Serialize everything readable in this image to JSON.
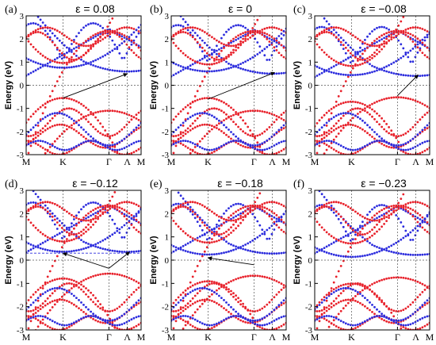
{
  "figure": {
    "y_axis_label": "Energy (eV)",
    "y_ticks": [
      "3",
      "2",
      "1",
      "0",
      "-1",
      "-2",
      "-3"
    ],
    "colors": {
      "red": "#e8202a",
      "blue": "#2b2bdd",
      "arrow": "#000000",
      "axis": "#000000",
      "guide": "#555555"
    }
  },
  "chart_data": [
    {
      "type": "scatter",
      "panel_label": "(a)",
      "title": "ε = 0.08",
      "x_tick_labels": [
        "M",
        "K",
        "Γ",
        "Λ",
        "M"
      ],
      "x": [
        0,
        0.32,
        0.72,
        0.88,
        1
      ],
      "ylim": [
        -3,
        3
      ],
      "grid": false,
      "annotations": {
        "arrow": {
          "from": [
            0.32,
            -0.55
          ],
          "to": [
            0.88,
            0.5
          ]
        },
        "blue_dashed_level": null
      }
    },
    {
      "type": "scatter",
      "panel_label": "(b)",
      "title": "ε = 0",
      "x_tick_labels": [
        "M",
        "K",
        "Γ",
        "Λ",
        "M"
      ],
      "x": [
        0,
        0.32,
        0.72,
        0.88,
        1
      ],
      "ylim": [
        -3,
        3
      ],
      "grid": false,
      "annotations": {
        "arrow": {
          "from": [
            0.32,
            -0.6
          ],
          "to": [
            0.9,
            0.55
          ]
        },
        "blue_dashed_level": null
      }
    },
    {
      "type": "scatter",
      "panel_label": "(c)",
      "title": "ε = −0.08",
      "x_tick_labels": [
        "M",
        "K",
        "Γ",
        "Λ",
        "M"
      ],
      "x": [
        0,
        0.32,
        0.72,
        0.88,
        1
      ],
      "ylim": [
        -3,
        3
      ],
      "grid": false,
      "annotations": {
        "arrow": {
          "from": [
            0.72,
            -0.45
          ],
          "to": [
            0.9,
            0.45
          ]
        },
        "blue_dashed_level": null
      }
    },
    {
      "type": "scatter",
      "panel_label": "(d)",
      "title": "ε = −0.12",
      "x_tick_labels": [
        "M",
        "K",
        "Γ",
        "Λ",
        "M"
      ],
      "x": [
        0,
        0.32,
        0.72,
        0.88,
        1
      ],
      "ylim": [
        -3,
        3
      ],
      "grid": false,
      "annotations": {
        "arrow": {
          "from": [
            0.72,
            -0.35
          ],
          "to": [
            0.9,
            0.35
          ]
        },
        "arrow2": {
          "from": [
            0.72,
            -0.35
          ],
          "to": [
            0.32,
            0.3
          ]
        },
        "blue_dashed_level": 0.3
      }
    },
    {
      "type": "scatter",
      "panel_label": "(e)",
      "title": "ε = −0.18",
      "x_tick_labels": [
        "M",
        "K",
        "Γ",
        "Λ",
        "M"
      ],
      "x": [
        0,
        0.32,
        0.72,
        0.88,
        1
      ],
      "ylim": [
        -3,
        3
      ],
      "grid": false,
      "annotations": {
        "arrow": {
          "from": [
            0.72,
            -0.2
          ],
          "to": [
            0.32,
            0.1
          ]
        },
        "blue_dashed_level": null
      }
    },
    {
      "type": "scatter",
      "panel_label": "(f)",
      "title": "ε = −0.23",
      "x_tick_labels": [
        "M",
        "K",
        "Γ",
        "Λ",
        "M"
      ],
      "x": [
        0,
        0.32,
        0.72,
        0.88,
        1
      ],
      "ylim": [
        -3,
        3
      ],
      "grid": false,
      "annotations": {
        "arrow": null,
        "blue_dashed_level": null
      }
    }
  ]
}
